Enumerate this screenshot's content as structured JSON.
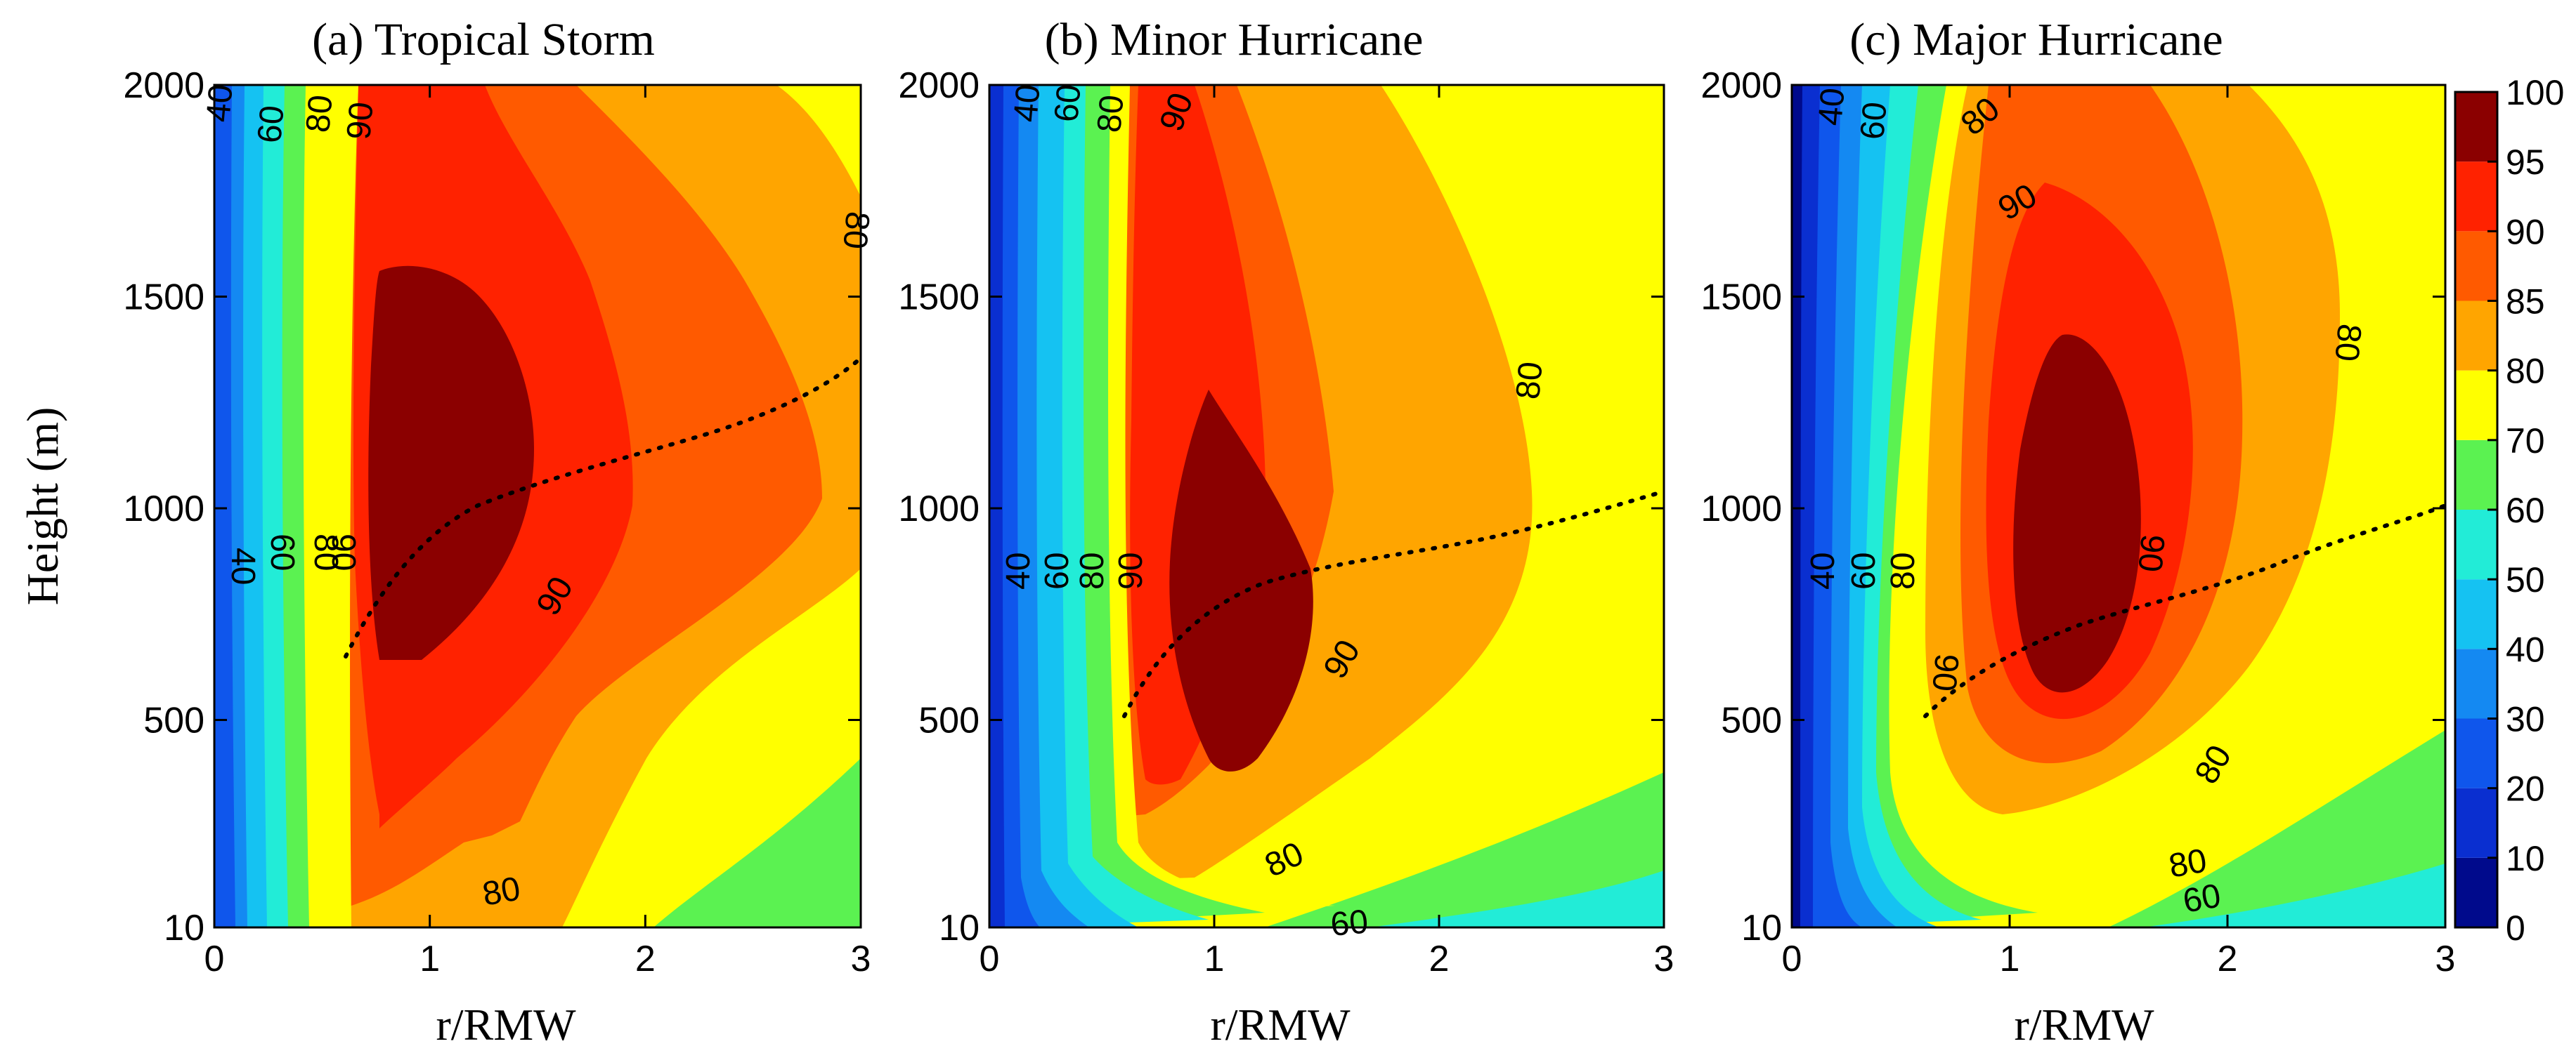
{
  "figure": {
    "colorbar": {
      "levels": [
        0,
        10,
        20,
        30,
        40,
        50,
        60,
        70,
        80,
        85,
        90,
        95,
        100
      ],
      "colors": [
        "#000a8c",
        "#0a2fd0",
        "#0f56ec",
        "#1489f2",
        "#15c2f2",
        "#22ecd7",
        "#5bf251",
        "#ffff00",
        "#ffa500",
        "#ff5a00",
        "#ff2200",
        "#8b0000"
      ],
      "tick_labels": [
        "0",
        "10",
        "20",
        "30",
        "40",
        "50",
        "60",
        "70",
        "80",
        "85",
        "90",
        "95",
        "100"
      ]
    },
    "axes": {
      "xlabel": "r/RMW",
      "ylabel": "Height (m)",
      "x_tick_labels": [
        "0",
        "1",
        "2",
        "3"
      ],
      "y_tick_labels": [
        "10",
        "500",
        "1000",
        "1500",
        "2000"
      ]
    }
  },
  "chart_data": [
    {
      "type": "contour",
      "title": "(a) Tropical Storm",
      "xlabel": "r/RMW",
      "ylabel": "Height (m)",
      "xlim": [
        0,
        3
      ],
      "ylim": [
        10,
        2000
      ],
      "x_ticks": [
        0,
        1,
        2,
        3
      ],
      "y_ticks": [
        10,
        500,
        1000,
        1500,
        2000
      ],
      "contour_labels": [
        "40",
        "60",
        "80",
        "90",
        "40",
        "60",
        "80",
        "90",
        "90",
        "80",
        "80"
      ],
      "max_region_center": {
        "x": 1.0,
        "y": 1100
      },
      "dotted_line": {
        "x": [
          0.6,
          0.8,
          1.0,
          1.3,
          1.6,
          2.0,
          2.5,
          3.0
        ],
        "y": [
          650,
          780,
          900,
          960,
          1010,
          1060,
          1150,
          1350
        ]
      }
    },
    {
      "type": "contour",
      "title": "(b) Minor Hurricane",
      "xlabel": "r/RMW",
      "xlim": [
        0,
        3
      ],
      "ylim": [
        10,
        2000
      ],
      "x_ticks": [
        0,
        1,
        2,
        3
      ],
      "y_ticks": [
        10,
        500,
        1000,
        1500,
        2000
      ],
      "contour_labels": [
        "40",
        "60",
        "80",
        "90",
        "40",
        "60",
        "80",
        "90",
        "90",
        "80",
        "80",
        "60"
      ],
      "max_region_center": {
        "x": 1.0,
        "y": 800
      },
      "dotted_line": {
        "x": [
          0.6,
          0.8,
          1.0,
          1.3,
          1.6,
          2.0,
          2.5,
          3.0
        ],
        "y": [
          500,
          650,
          760,
          820,
          850,
          900,
          960,
          1020
        ]
      }
    },
    {
      "type": "contour",
      "title": "(c) Major Hurricane",
      "xlabel": "r/RMW",
      "xlim": [
        0,
        3
      ],
      "ylim": [
        10,
        2000
      ],
      "x_ticks": [
        0,
        1,
        2,
        3
      ],
      "y_ticks": [
        10,
        500,
        1000,
        1500,
        2000
      ],
      "contour_labels": [
        "40",
        "60",
        "80",
        "80",
        "90",
        "80",
        "40",
        "60",
        "80",
        "90",
        "90",
        "80",
        "60"
      ],
      "max_region_center": {
        "x": 1.2,
        "y": 850
      },
      "dotted_line": {
        "x": [
          0.6,
          0.8,
          1.0,
          1.3,
          1.6,
          2.0,
          2.5,
          3.0
        ],
        "y": [
          500,
          600,
          680,
          740,
          800,
          860,
          920,
          1000
        ]
      }
    }
  ]
}
